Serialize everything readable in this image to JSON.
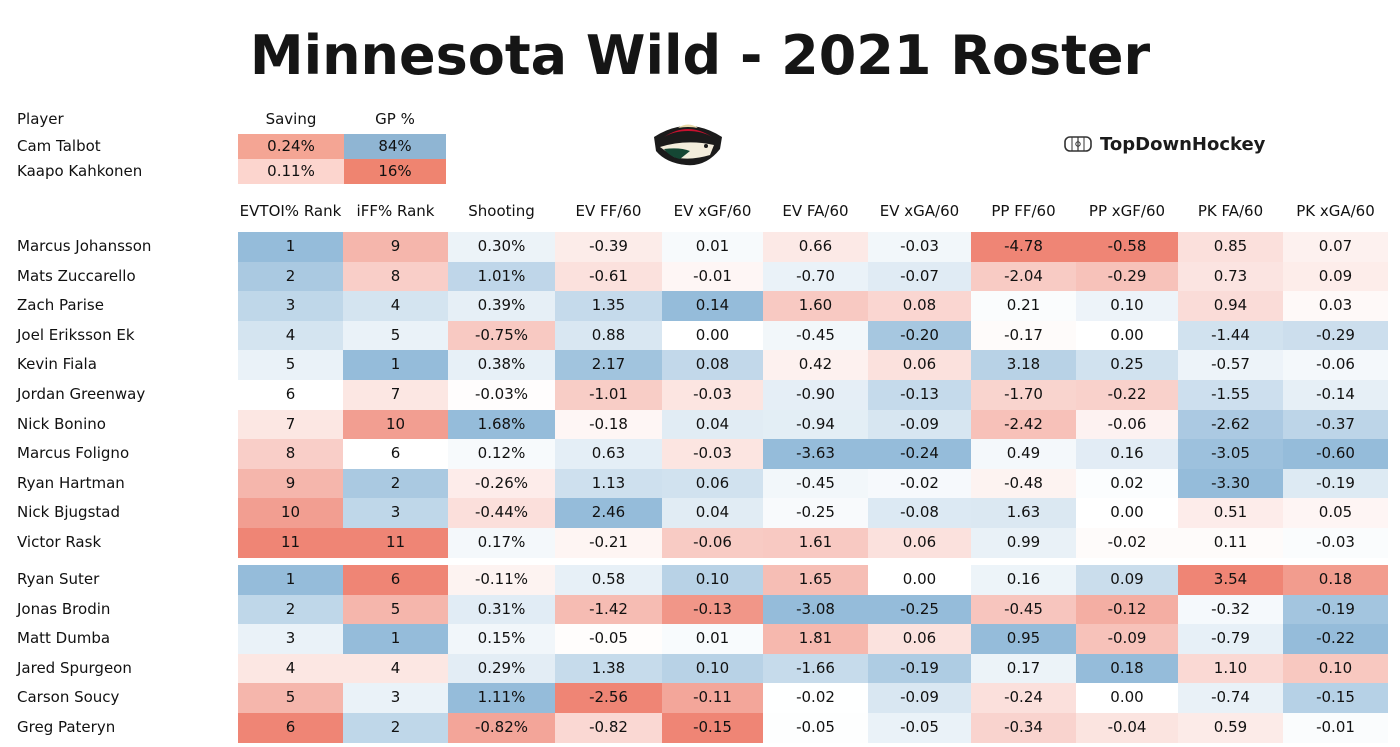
{
  "title": "Minnesota Wild - 2021 Roster",
  "brand": {
    "text": "TopDownHockey",
    "icon": "hockey-rink-icon",
    "logo": "minnesota-wild-logo-icon"
  },
  "colors": {
    "red": "#ee7f6e",
    "blue": "#8fb8d8",
    "neutral": "#ffffff",
    "title": "#151515"
  },
  "goalies": {
    "headers": {
      "player": "Player",
      "saving": "Saving",
      "gp": "GP %"
    },
    "rows": [
      {
        "name": "Cam Talbot",
        "saving": "0.24%",
        "saving_color": "#f4a594",
        "gp": "84%",
        "gp_color": "#8fb5d3"
      },
      {
        "name": "Kaapo Kahkonen",
        "saving": "0.11%",
        "saving_color": "#fcd5ce",
        "gp": "16%",
        "gp_color": "#ef8470"
      }
    ]
  },
  "chart_data": {
    "type": "table",
    "title": "Minnesota Wild - 2021 Roster",
    "columns": [
      "EVTOI% Rank",
      "iFF% Rank",
      "Shooting",
      "EV FF/60",
      "EV xGF/60",
      "EV FA/60",
      "EV xGA/60",
      "PP FF/60",
      "PP xGF/60",
      "PK FA/60",
      "PK xGA/60"
    ],
    "groups": [
      {
        "rows": [
          {
            "name": "Marcus Johansson",
            "values": [
              "1",
              "9",
              "0.30%",
              "-0.39",
              "0.01",
              "0.66",
              "-0.03",
              "-4.78",
              "-0.58",
              "0.85",
              "0.07"
            ]
          },
          {
            "name": "Mats Zuccarello",
            "values": [
              "2",
              "8",
              "1.01%",
              "-0.61",
              "-0.01",
              "-0.70",
              "-0.07",
              "-2.04",
              "-0.29",
              "0.73",
              "0.09"
            ]
          },
          {
            "name": "Zach Parise",
            "values": [
              "3",
              "4",
              "0.39%",
              "1.35",
              "0.14",
              "1.60",
              "0.08",
              "0.21",
              "0.10",
              "0.94",
              "0.03"
            ]
          },
          {
            "name": "Joel Eriksson Ek",
            "values": [
              "4",
              "5",
              "-0.75%",
              "0.88",
              "0.00",
              "-0.45",
              "-0.20",
              "-0.17",
              "0.00",
              "-1.44",
              "-0.29"
            ]
          },
          {
            "name": "Kevin Fiala",
            "values": [
              "5",
              "1",
              "0.38%",
              "2.17",
              "0.08",
              "0.42",
              "0.06",
              "3.18",
              "0.25",
              "-0.57",
              "-0.06"
            ]
          },
          {
            "name": "Jordan Greenway",
            "values": [
              "6",
              "7",
              "-0.03%",
              "-1.01",
              "-0.03",
              "-0.90",
              "-0.13",
              "-1.70",
              "-0.22",
              "-1.55",
              "-0.14"
            ]
          },
          {
            "name": "Nick Bonino",
            "values": [
              "7",
              "10",
              "1.68%",
              "-0.18",
              "0.04",
              "-0.94",
              "-0.09",
              "-2.42",
              "-0.06",
              "-2.62",
              "-0.37"
            ]
          },
          {
            "name": "Marcus Foligno",
            "values": [
              "8",
              "6",
              "0.12%",
              "0.63",
              "-0.03",
              "-3.63",
              "-0.24",
              "0.49",
              "0.16",
              "-3.05",
              "-0.60"
            ]
          },
          {
            "name": "Ryan Hartman",
            "values": [
              "9",
              "2",
              "-0.26%",
              "1.13",
              "0.06",
              "-0.45",
              "-0.02",
              "-0.48",
              "0.02",
              "-3.30",
              "-0.19"
            ]
          },
          {
            "name": "Nick Bjugstad",
            "values": [
              "10",
              "3",
              "-0.44%",
              "2.46",
              "0.04",
              "-0.25",
              "-0.08",
              "1.63",
              "0.00",
              "0.51",
              "0.05"
            ]
          },
          {
            "name": "Victor Rask",
            "values": [
              "11",
              "11",
              "0.17%",
              "-0.21",
              "-0.06",
              "1.61",
              "0.06",
              "0.99",
              "-0.02",
              "0.11",
              "-0.03"
            ]
          }
        ]
      },
      {
        "rows": [
          {
            "name": "Ryan Suter",
            "values": [
              "1",
              "6",
              "-0.11%",
              "0.58",
              "0.10",
              "1.65",
              "0.00",
              "0.16",
              "0.09",
              "3.54",
              "0.18"
            ]
          },
          {
            "name": "Jonas Brodin",
            "values": [
              "2",
              "5",
              "0.31%",
              "-1.42",
              "-0.13",
              "-3.08",
              "-0.25",
              "-0.45",
              "-0.12",
              "-0.32",
              "-0.19"
            ]
          },
          {
            "name": "Matt Dumba",
            "values": [
              "3",
              "1",
              "0.15%",
              "-0.05",
              "0.01",
              "1.81",
              "0.06",
              "0.95",
              "-0.09",
              "-0.79",
              "-0.22"
            ]
          },
          {
            "name": "Jared Spurgeon",
            "values": [
              "4",
              "4",
              "0.29%",
              "1.38",
              "0.10",
              "-1.66",
              "-0.19",
              "0.17",
              "0.18",
              "1.10",
              "0.10"
            ]
          },
          {
            "name": "Carson Soucy",
            "values": [
              "5",
              "3",
              "1.11%",
              "-2.56",
              "-0.11",
              "-0.02",
              "-0.09",
              "-0.24",
              "0.00",
              "-0.74",
              "-0.15"
            ]
          },
          {
            "name": "Greg Pateryn",
            "values": [
              "6",
              "2",
              "-0.82%",
              "-0.82",
              "-0.15",
              "-0.05",
              "-0.05",
              "-0.34",
              "-0.04",
              "0.59",
              "-0.01"
            ]
          }
        ]
      }
    ]
  }
}
